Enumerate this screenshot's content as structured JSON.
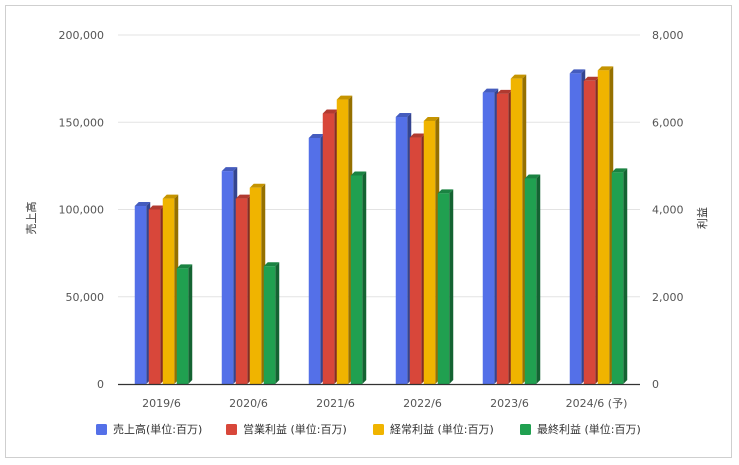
{
  "chart_data": {
    "type": "bar",
    "categories": [
      "2019/6",
      "2020/6",
      "2021/6",
      "2022/6",
      "2023/6",
      "2024/6 (予)"
    ],
    "series": [
      {
        "name": "売上高(単位:百万)",
        "axis": "left",
        "color": "#5470e8",
        "values": [
          102000,
          122000,
          141000,
          153000,
          167000,
          178000
        ]
      },
      {
        "name": "営業利益 (単位:百万)",
        "axis": "right",
        "color": "#d8473a",
        "values": [
          4000,
          4250,
          6200,
          5650,
          6650,
          6950
        ]
      },
      {
        "name": "経常利益 (単位:百万)",
        "axis": "right",
        "color": "#f0b400",
        "values": [
          4250,
          4500,
          6520,
          6030,
          7000,
          7190
        ]
      },
      {
        "name": "最終利益 (単位:百万)",
        "axis": "right",
        "color": "#20a050",
        "values": [
          2650,
          2700,
          4780,
          4370,
          4710,
          4850
        ]
      }
    ],
    "ylabel": "売上高",
    "y2label": "利益",
    "ylim": [
      0,
      200000
    ],
    "y2lim": [
      0,
      8000
    ],
    "yticks": [
      "0",
      "50,000",
      "100,000",
      "150,000",
      "200,000"
    ],
    "y2ticks": [
      "0",
      "2,000",
      "4,000",
      "6,000",
      "8,000"
    ],
    "grid": true,
    "legend": "bottom"
  }
}
